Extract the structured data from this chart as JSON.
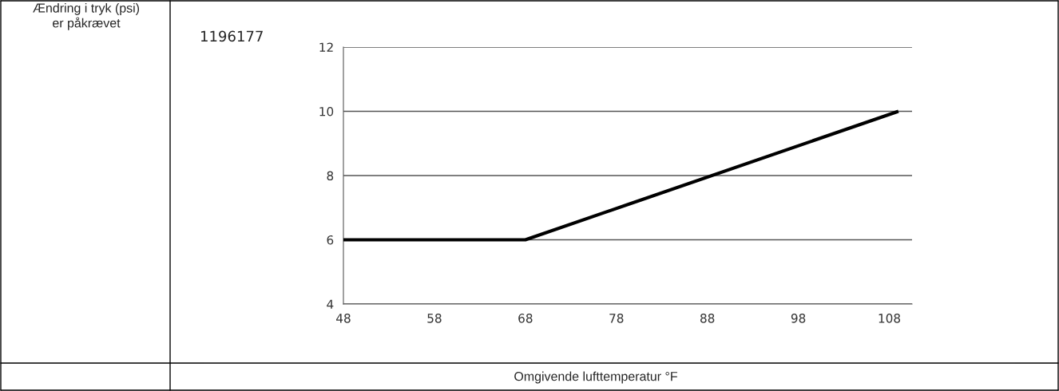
{
  "chart_data": {
    "type": "line",
    "xlabel": "Omgivende lufttemperatur °F",
    "annotations": [
      "Ændring i tryk (psi)\ner påkrævet",
      "1196177"
    ],
    "series": [
      {
        "color": "#000000",
        "x": [
          48,
          68,
          109
        ],
        "values": [
          6,
          6,
          10
        ]
      }
    ],
    "xlim": [
      48,
      110.5
    ],
    "xticks": [
      48,
      58,
      68,
      78,
      88,
      98,
      108
    ],
    "ylim": [
      4,
      12
    ],
    "yticks": [
      4,
      6,
      8,
      10,
      12
    ],
    "grid": "y",
    "legend": false,
    "marker": "none",
    "line_style": "solid"
  }
}
